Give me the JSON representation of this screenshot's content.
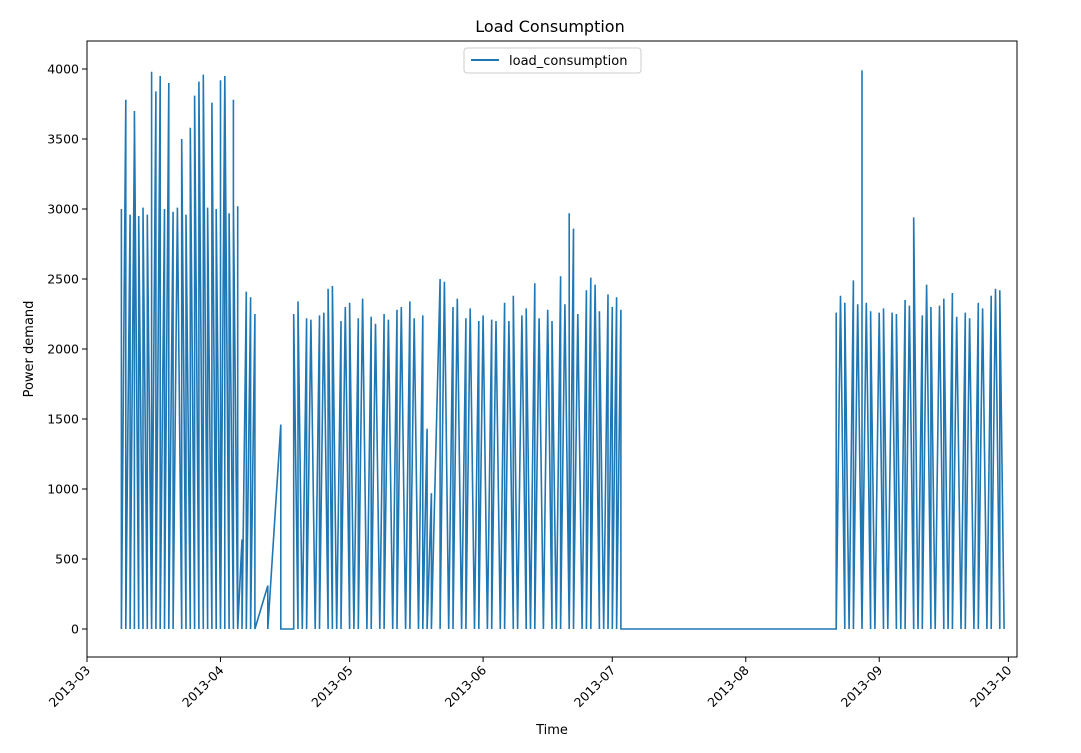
{
  "chart_data": {
    "type": "line",
    "title": "Load Consumption",
    "xlabel": "Time",
    "ylabel": "Power demand",
    "x_range": [
      "2013-03-01",
      "2013-10-03"
    ],
    "ylim": [
      -200,
      4200
    ],
    "x_ticks": [
      "2013-03",
      "2013-04",
      "2013-05",
      "2013-06",
      "2013-07",
      "2013-08",
      "2013-09",
      "2013-10"
    ],
    "y_ticks": [
      0,
      500,
      1000,
      1500,
      2000,
      2500,
      3000,
      3500,
      4000
    ],
    "grid": false,
    "legend": {
      "position": "top-center"
    },
    "series": [
      {
        "name": "load_consumption",
        "color": "#1f77b4",
        "points": [
          [
            "2013-03-09",
            0
          ],
          [
            "2013-03-09",
            3000
          ],
          [
            "2013-03-09",
            0
          ],
          [
            "2013-03-10",
            3780
          ],
          [
            "2013-03-10",
            0
          ],
          [
            "2013-03-11",
            2960
          ],
          [
            "2013-03-11",
            0
          ],
          [
            "2013-03-12",
            3530
          ],
          [
            "2013-03-12",
            0
          ],
          [
            "2013-03-12",
            3700
          ],
          [
            "2013-03-13",
            0
          ],
          [
            "2013-03-13",
            2950
          ],
          [
            "2013-03-14",
            0
          ],
          [
            "2013-03-14",
            3010
          ],
          [
            "2013-03-15",
            0
          ],
          [
            "2013-03-15",
            2960
          ],
          [
            "2013-03-16",
            0
          ],
          [
            "2013-03-16",
            3980
          ],
          [
            "2013-03-16",
            0
          ],
          [
            "2013-03-17",
            3840
          ],
          [
            "2013-03-17",
            0
          ],
          [
            "2013-03-18",
            3950
          ],
          [
            "2013-03-18",
            0
          ],
          [
            "2013-03-19",
            3000
          ],
          [
            "2013-03-19",
            0
          ],
          [
            "2013-03-20",
            3900
          ],
          [
            "2013-03-20",
            0
          ],
          [
            "2013-03-21",
            2980
          ],
          [
            "2013-03-21",
            0
          ],
          [
            "2013-03-22",
            3010
          ],
          [
            "2013-03-23",
            0
          ],
          [
            "2013-03-23",
            3500
          ],
          [
            "2013-03-24",
            0
          ],
          [
            "2013-03-24",
            2960
          ],
          [
            "2013-03-25",
            0
          ],
          [
            "2013-03-25",
            3580
          ],
          [
            "2013-03-26",
            0
          ],
          [
            "2013-03-26",
            3810
          ],
          [
            "2013-03-27",
            0
          ],
          [
            "2013-03-27",
            3910
          ],
          [
            "2013-03-28",
            0
          ],
          [
            "2013-03-28",
            3960
          ],
          [
            "2013-03-29",
            0
          ],
          [
            "2013-03-29",
            3010
          ],
          [
            "2013-03-30",
            0
          ],
          [
            "2013-03-30",
            3760
          ],
          [
            "2013-03-31",
            0
          ],
          [
            "2013-03-31",
            3000
          ],
          [
            "2013-04-01",
            0
          ],
          [
            "2013-04-01",
            3920
          ],
          [
            "2013-04-01",
            0
          ],
          [
            "2013-04-02",
            3930
          ],
          [
            "2013-04-02",
            0
          ],
          [
            "2013-04-02",
            3950
          ],
          [
            "2013-04-03",
            0
          ],
          [
            "2013-04-03",
            2970
          ],
          [
            "2013-04-04",
            0
          ],
          [
            "2013-04-04",
            3780
          ],
          [
            "2013-04-04",
            0
          ],
          [
            "2013-04-04",
            3060
          ],
          [
            "2013-04-05",
            0
          ],
          [
            "2013-04-05",
            3020
          ],
          [
            "2013-04-05",
            0
          ],
          [
            "2013-04-06",
            640
          ],
          [
            "2013-04-06",
            0
          ],
          [
            "2013-04-07",
            2410
          ],
          [
            "2013-04-07",
            0
          ],
          [
            "2013-04-08",
            2370
          ],
          [
            "2013-04-08",
            0
          ],
          [
            "2013-04-09",
            2250
          ],
          [
            "2013-04-09",
            0
          ],
          [
            "2013-04-12",
            310
          ],
          [
            "2013-04-12",
            0
          ],
          [
            "2013-04-15",
            1460
          ],
          [
            "2013-04-15",
            0
          ],
          [
            "2013-04-18",
            0
          ],
          [
            "2013-04-18",
            2250
          ],
          [
            "2013-04-19",
            0
          ],
          [
            "2013-04-19",
            2340
          ],
          [
            "2013-04-20",
            0
          ],
          [
            "2013-04-21",
            2220
          ],
          [
            "2013-04-21",
            0
          ],
          [
            "2013-04-22",
            2210
          ],
          [
            "2013-04-23",
            0
          ],
          [
            "2013-04-24",
            2240
          ],
          [
            "2013-04-24",
            0
          ],
          [
            "2013-04-25",
            2260
          ],
          [
            "2013-04-26",
            0
          ],
          [
            "2013-04-26",
            2430
          ],
          [
            "2013-04-27",
            0
          ],
          [
            "2013-04-27",
            2450
          ],
          [
            "2013-04-28",
            0
          ],
          [
            "2013-04-29",
            2200
          ],
          [
            "2013-04-29",
            0
          ],
          [
            "2013-04-30",
            2300
          ],
          [
            "2013-05-01",
            0
          ],
          [
            "2013-05-01",
            2330
          ],
          [
            "2013-05-02",
            0
          ],
          [
            "2013-05-03",
            2220
          ],
          [
            "2013-05-03",
            0
          ],
          [
            "2013-05-04",
            2360
          ],
          [
            "2013-05-05",
            0
          ],
          [
            "2013-05-06",
            2230
          ],
          [
            "2013-05-06",
            0
          ],
          [
            "2013-05-07",
            2180
          ],
          [
            "2013-05-08",
            0
          ],
          [
            "2013-05-09",
            2250
          ],
          [
            "2013-05-09",
            0
          ],
          [
            "2013-05-10",
            2210
          ],
          [
            "2013-05-11",
            0
          ],
          [
            "2013-05-12",
            2280
          ],
          [
            "2013-05-12",
            0
          ],
          [
            "2013-05-13",
            2300
          ],
          [
            "2013-05-14",
            0
          ],
          [
            "2013-05-15",
            2340
          ],
          [
            "2013-05-15",
            0
          ],
          [
            "2013-05-16",
            2220
          ],
          [
            "2013-05-17",
            0
          ],
          [
            "2013-05-18",
            2240
          ],
          [
            "2013-05-18",
            0
          ],
          [
            "2013-05-19",
            1430
          ],
          [
            "2013-05-19",
            0
          ],
          [
            "2013-05-20",
            970
          ],
          [
            "2013-05-20",
            0
          ],
          [
            "2013-05-22",
            2500
          ],
          [
            "2013-05-22",
            0
          ],
          [
            "2013-05-23",
            2480
          ],
          [
            "2013-05-24",
            0
          ],
          [
            "2013-05-25",
            2300
          ],
          [
            "2013-05-25",
            0
          ],
          [
            "2013-05-26",
            2360
          ],
          [
            "2013-05-27",
            0
          ],
          [
            "2013-05-28",
            2220
          ],
          [
            "2013-05-28",
            0
          ],
          [
            "2013-05-29",
            2290
          ],
          [
            "2013-05-30",
            0
          ],
          [
            "2013-05-31",
            2200
          ],
          [
            "2013-05-31",
            0
          ],
          [
            "2013-06-01",
            2240
          ],
          [
            "2013-06-02",
            0
          ],
          [
            "2013-06-03",
            2210
          ],
          [
            "2013-06-03",
            0
          ],
          [
            "2013-06-04",
            2200
          ],
          [
            "2013-06-05",
            0
          ],
          [
            "2013-06-06",
            2330
          ],
          [
            "2013-06-06",
            0
          ],
          [
            "2013-06-07",
            2200
          ],
          [
            "2013-06-08",
            0
          ],
          [
            "2013-06-08",
            2380
          ],
          [
            "2013-06-09",
            0
          ],
          [
            "2013-06-10",
            2240
          ],
          [
            "2013-06-11",
            0
          ],
          [
            "2013-06-11",
            2290
          ],
          [
            "2013-06-12",
            0
          ],
          [
            "2013-06-13",
            2470
          ],
          [
            "2013-06-13",
            0
          ],
          [
            "2013-06-14",
            2220
          ],
          [
            "2013-06-15",
            0
          ],
          [
            "2013-06-16",
            2280
          ],
          [
            "2013-06-17",
            0
          ],
          [
            "2013-06-17",
            2200
          ],
          [
            "2013-06-18",
            0
          ],
          [
            "2013-06-19",
            2520
          ],
          [
            "2013-06-19",
            0
          ],
          [
            "2013-06-20",
            2320
          ],
          [
            "2013-06-21",
            0
          ],
          [
            "2013-06-21",
            2970
          ],
          [
            "2013-06-21",
            0
          ],
          [
            "2013-06-22",
            2860
          ],
          [
            "2013-06-22",
            0
          ],
          [
            "2013-06-23",
            2250
          ],
          [
            "2013-06-24",
            0
          ],
          [
            "2013-06-25",
            2420
          ],
          [
            "2013-06-25",
            0
          ],
          [
            "2013-06-26",
            2510
          ],
          [
            "2013-06-26",
            0
          ],
          [
            "2013-06-27",
            2460
          ],
          [
            "2013-06-28",
            0
          ],
          [
            "2013-06-28",
            2270
          ],
          [
            "2013-06-29",
            0
          ],
          [
            "2013-06-30",
            2390
          ],
          [
            "2013-06-30",
            0
          ],
          [
            "2013-07-01",
            2300
          ],
          [
            "2013-07-01",
            0
          ],
          [
            "2013-07-02",
            2370
          ],
          [
            "2013-07-02",
            0
          ],
          [
            "2013-07-03",
            2280
          ],
          [
            "2013-07-03",
            0
          ],
          [
            "2013-08-22",
            0
          ],
          [
            "2013-08-22",
            2260
          ],
          [
            "2013-08-22",
            0
          ],
          [
            "2013-08-23",
            2380
          ],
          [
            "2013-08-24",
            0
          ],
          [
            "2013-08-24",
            2330
          ],
          [
            "2013-08-25",
            0
          ],
          [
            "2013-08-26",
            2490
          ],
          [
            "2013-08-26",
            0
          ],
          [
            "2013-08-27",
            2320
          ],
          [
            "2013-08-28",
            0
          ],
          [
            "2013-08-28",
            3990
          ],
          [
            "2013-08-28",
            0
          ],
          [
            "2013-08-29",
            2330
          ],
          [
            "2013-08-30",
            0
          ],
          [
            "2013-08-30",
            2270
          ],
          [
            "2013-08-31",
            0
          ],
          [
            "2013-09-01",
            2260
          ],
          [
            "2013-09-02",
            0
          ],
          [
            "2013-09-02",
            2290
          ],
          [
            "2013-09-03",
            0
          ],
          [
            "2013-09-04",
            2260
          ],
          [
            "2013-09-05",
            0
          ],
          [
            "2013-09-05",
            2250
          ],
          [
            "2013-09-06",
            0
          ],
          [
            "2013-09-07",
            2350
          ],
          [
            "2013-09-07",
            0
          ],
          [
            "2013-09-08",
            2310
          ],
          [
            "2013-09-09",
            0
          ],
          [
            "2013-09-09",
            2940
          ],
          [
            "2013-09-10",
            0
          ],
          [
            "2013-09-11",
            2240
          ],
          [
            "2013-09-11",
            0
          ],
          [
            "2013-09-12",
            2460
          ],
          [
            "2013-09-13",
            0
          ],
          [
            "2013-09-13",
            2300
          ],
          [
            "2013-09-14",
            0
          ],
          [
            "2013-09-15",
            2310
          ],
          [
            "2013-09-16",
            0
          ],
          [
            "2013-09-16",
            2360
          ],
          [
            "2013-09-17",
            0
          ],
          [
            "2013-09-18",
            2400
          ],
          [
            "2013-09-18",
            0
          ],
          [
            "2013-09-19",
            2230
          ],
          [
            "2013-09-20",
            0
          ],
          [
            "2013-09-21",
            2260
          ],
          [
            "2013-09-21",
            0
          ],
          [
            "2013-09-22",
            2220
          ],
          [
            "2013-09-23",
            0
          ],
          [
            "2013-09-24",
            2330
          ],
          [
            "2013-09-24",
            0
          ],
          [
            "2013-09-25",
            2290
          ],
          [
            "2013-09-26",
            0
          ],
          [
            "2013-09-27",
            2380
          ],
          [
            "2013-09-27",
            0
          ],
          [
            "2013-09-28",
            2430
          ],
          [
            "2013-09-29",
            0
          ],
          [
            "2013-09-29",
            2420
          ],
          [
            "2013-09-30",
            0
          ]
        ]
      }
    ]
  }
}
